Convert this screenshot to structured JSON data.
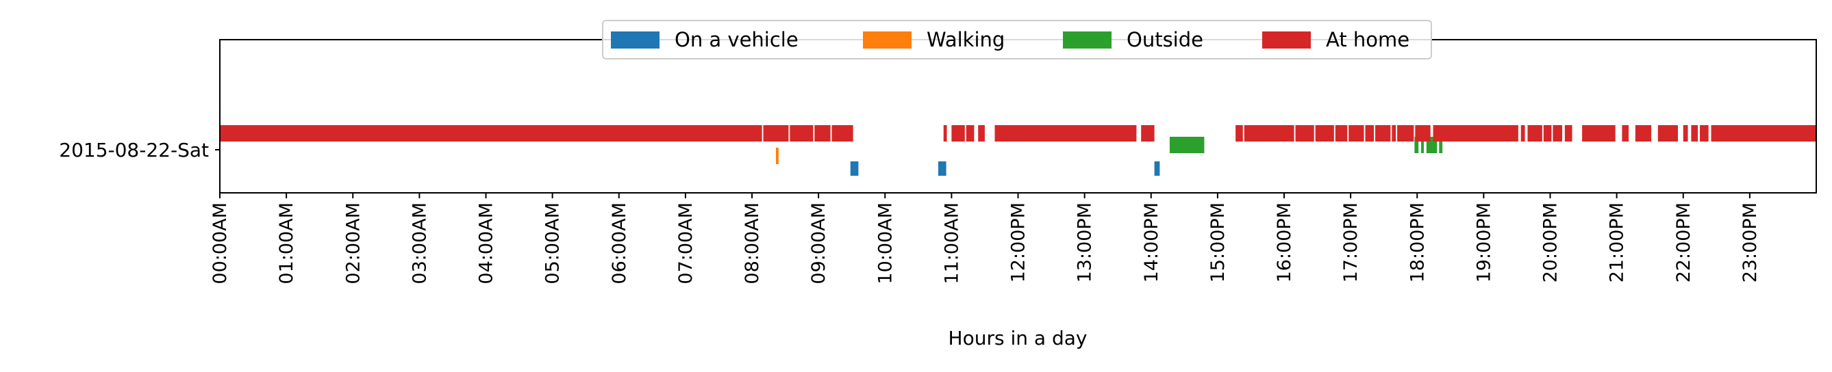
{
  "chart_data": {
    "type": "timeline",
    "xlabel": "Hours in a day",
    "row_label": "2015-08-22-Sat",
    "x_ticks": [
      "00:00AM",
      "01:00AM",
      "02:00AM",
      "03:00AM",
      "04:00AM",
      "05:00AM",
      "06:00AM",
      "07:00AM",
      "08:00AM",
      "09:00AM",
      "10:00AM",
      "11:00AM",
      "12:00PM",
      "13:00PM",
      "14:00PM",
      "15:00PM",
      "16:00PM",
      "17:00PM",
      "18:00PM",
      "19:00PM",
      "20:00PM",
      "21:00PM",
      "22:00PM",
      "23:00PM"
    ],
    "xlim_hours": [
      0,
      24
    ],
    "legend_position": "top-center",
    "grid": false,
    "series": [
      {
        "name": "On a vehicle",
        "color": "#1f77b4",
        "intervals": [
          [
            9.48,
            9.6
          ],
          [
            10.8,
            10.92
          ],
          [
            14.05,
            14.13
          ]
        ]
      },
      {
        "name": "Walking",
        "color": "#ff7f0e",
        "intervals": [
          [
            8.36,
            8.4
          ]
        ]
      },
      {
        "name": "Outside",
        "color": "#2ca02c",
        "intervals": [
          [
            14.28,
            14.8
          ],
          [
            17.96,
            18.02
          ],
          [
            18.06,
            18.1
          ],
          [
            18.14,
            18.3
          ],
          [
            18.33,
            18.38
          ]
        ]
      },
      {
        "name": "At home",
        "color": "#d62728",
        "intervals": [
          [
            0.0,
            8.15
          ],
          [
            8.17,
            8.55
          ],
          [
            8.57,
            8.92
          ],
          [
            8.94,
            9.18
          ],
          [
            9.2,
            9.52
          ],
          [
            10.88,
            10.93
          ],
          [
            11.0,
            11.2
          ],
          [
            11.22,
            11.34
          ],
          [
            11.4,
            11.5
          ],
          [
            11.65,
            13.78
          ],
          [
            13.85,
            14.05
          ],
          [
            15.27,
            15.38
          ],
          [
            15.4,
            16.15
          ],
          [
            16.17,
            16.45
          ],
          [
            16.47,
            16.75
          ],
          [
            16.77,
            16.95
          ],
          [
            16.97,
            17.2
          ],
          [
            17.22,
            17.35
          ],
          [
            17.37,
            17.6
          ],
          [
            17.62,
            17.68
          ],
          [
            17.7,
            17.95
          ],
          [
            17.97,
            18.2
          ],
          [
            18.24,
            19.52
          ],
          [
            19.56,
            19.62
          ],
          [
            19.66,
            19.88
          ],
          [
            19.9,
            20.02
          ],
          [
            20.04,
            20.18
          ],
          [
            20.22,
            20.33
          ],
          [
            20.48,
            20.98
          ],
          [
            21.08,
            21.18
          ],
          [
            21.28,
            21.52
          ],
          [
            21.62,
            21.92
          ],
          [
            22.0,
            22.07
          ],
          [
            22.12,
            22.22
          ],
          [
            22.25,
            22.38
          ],
          [
            22.42,
            24.0
          ]
        ]
      }
    ]
  }
}
